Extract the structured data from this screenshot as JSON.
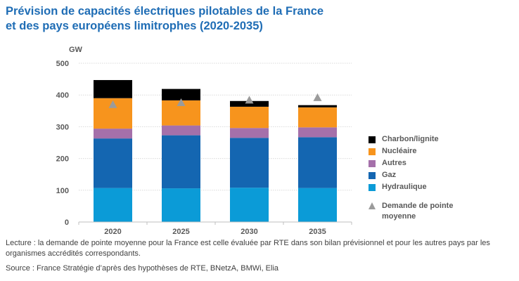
{
  "header": {
    "title_line1": "Prévision de capacités électriques pilotables de la France",
    "title_line2": "et des pays européens limitrophes (2020-2035)"
  },
  "chart_data": {
    "type": "bar",
    "stacked": true,
    "unit_label": "GW",
    "categories": [
      "2020",
      "2025",
      "2030",
      "2035"
    ],
    "ylim": [
      0,
      500
    ],
    "yticks": [
      0,
      100,
      200,
      300,
      400,
      500
    ],
    "grid": true,
    "legend_position": "right",
    "series": [
      {
        "name": "Hydraulique",
        "color": "#0b9bd7",
        "values": [
          107,
          106,
          108,
          107
        ]
      },
      {
        "name": "Gaz",
        "color": "#1466b1",
        "values": [
          156,
          167,
          157,
          160
        ]
      },
      {
        "name": "Autres",
        "color": "#a570aa",
        "values": [
          31,
          31,
          31,
          31
        ]
      },
      {
        "name": "Nucléaire",
        "color": "#f7941d",
        "values": [
          96,
          79,
          67,
          63
        ]
      },
      {
        "name": "Charbon/lignite",
        "color": "#000000",
        "values": [
          57,
          36,
          18,
          7
        ]
      }
    ],
    "markers": {
      "name": "Demande de pointe moyenne",
      "color": "#9b9b9b",
      "values": [
        370,
        376,
        384,
        392
      ]
    }
  },
  "legend": {
    "items": [
      {
        "label": "Charbon/lignite",
        "color": "#000000",
        "icon": "square"
      },
      {
        "label": "Nucléaire",
        "color": "#f7941d",
        "icon": "square"
      },
      {
        "label": "Autres",
        "color": "#a570aa",
        "icon": "square"
      },
      {
        "label": "Gaz",
        "color": "#1466b1",
        "icon": "square"
      },
      {
        "label": "Hydraulique",
        "color": "#0b9bd7",
        "icon": "square"
      },
      {
        "label": "Demande de pointe moyenne",
        "color": "#9b9b9b",
        "icon": "triangle"
      }
    ]
  },
  "notes": {
    "lecture": "Lecture : la demande de pointe moyenne pour la France est celle évaluée par RTE dans son bilan prévisionnel et pour les autres pays par les organismes accrédités correspondants.",
    "source": "Source : France Stratégie d’après des hypothèses de RTE, BNetzA, BMWi, Elia"
  }
}
